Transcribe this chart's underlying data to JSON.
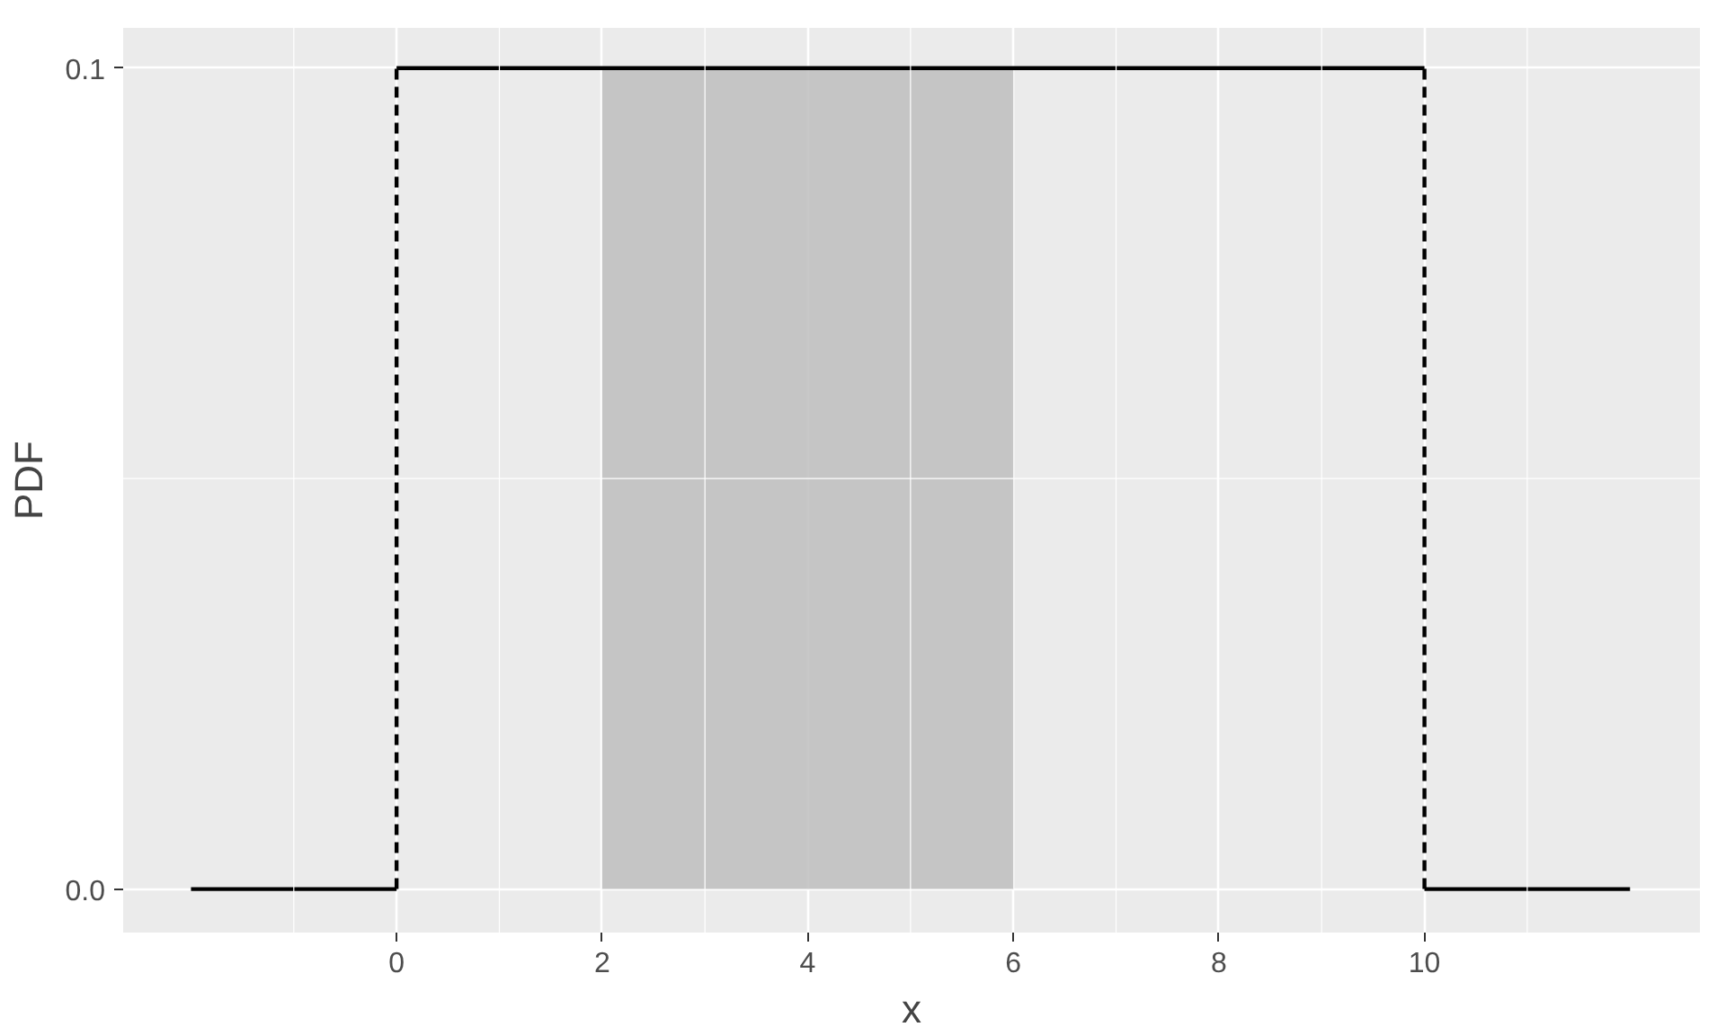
{
  "chart_data": {
    "type": "line",
    "xlabel": "x",
    "ylabel": "PDF",
    "xlim": [
      -2.66,
      12.68
    ],
    "ylim": [
      -0.0053,
      0.1049
    ],
    "xticks": [
      0,
      2,
      4,
      6,
      8,
      10
    ],
    "yticks": [
      {
        "value": 0,
        "label": "0.0"
      },
      {
        "value": 0.1,
        "label": "0.1"
      }
    ],
    "grid": true,
    "series": [
      {
        "type": "area",
        "color": "#bebebe",
        "x": [
          2,
          6
        ],
        "values": [
          0.1,
          0.1
        ]
      },
      {
        "color": "#000000",
        "x": [
          -2,
          0
        ],
        "values": [
          0,
          0
        ]
      },
      {
        "color": "#000000",
        "x": [
          0,
          10
        ],
        "values": [
          0.1,
          0.1
        ]
      },
      {
        "color": "#000000",
        "x": [
          10,
          12
        ],
        "values": [
          0,
          0
        ]
      },
      {
        "color": "#000000",
        "x": [
          0,
          0
        ],
        "values": [
          0,
          0.1
        ],
        "line_style": "dashed"
      },
      {
        "color": "#000000",
        "x": [
          10,
          10
        ],
        "values": [
          0,
          0.1
        ],
        "line_style": "dashed"
      }
    ]
  }
}
